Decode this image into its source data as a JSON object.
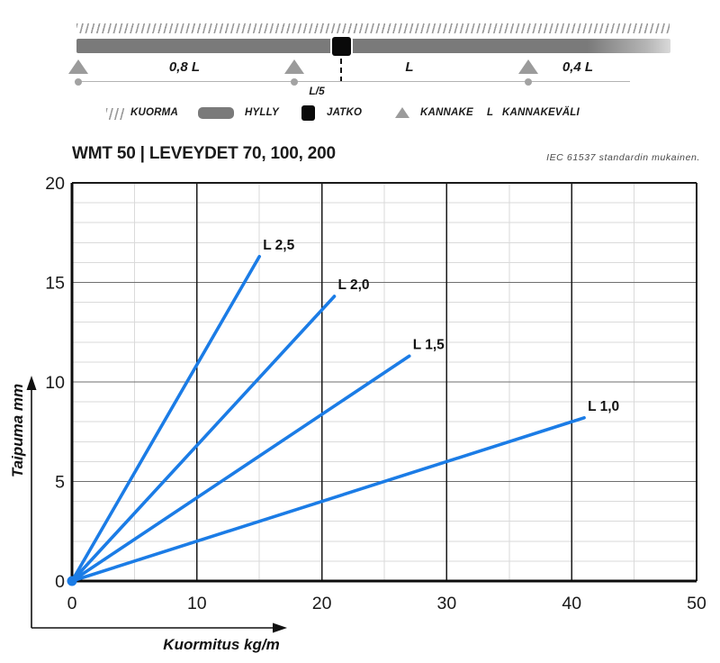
{
  "diagram": {
    "span_labels": [
      "0,8 L",
      "L",
      "0,4 L"
    ],
    "joint_offset_label": "L/5",
    "legend": [
      {
        "icon": "hatch-swatch",
        "label": "KUORMA"
      },
      {
        "icon": "shelf-bar-swatch",
        "label": "HYLLY"
      },
      {
        "icon": "joint-square-swatch",
        "label": "JATKO"
      },
      {
        "icon": "support-triangle-swatch",
        "label": "KANNAKE"
      },
      {
        "icon": "letter-L",
        "label": "KANNAKEVÄLI"
      }
    ],
    "legend_letter": "L"
  },
  "header": {
    "title": "WMT 50 | LEVEYDET 70, 100, 200",
    "note": "IEC 61537 standardin mukainen."
  },
  "colors": {
    "line_blue": "#1b7ce6",
    "shelf_gray": "#7a7a7a",
    "support_gray": "#9b9b9b",
    "joint_black": "#0a0a0a",
    "grid_minor": "#dadada",
    "grid_major_h": "#6f6f6f",
    "grid_major_v": "#1a1a1a"
  },
  "chart_data": {
    "type": "line",
    "title": "WMT 50 | LEVEYDET 70, 100, 200",
    "xlabel": "Kuormitus kg/m",
    "ylabel": "Taipuma mm",
    "xlim": [
      0,
      50
    ],
    "ylim": [
      0,
      20
    ],
    "x_major": 10,
    "x_minor": 5,
    "y_major": 5,
    "y_minor": 1,
    "x_ticks": [
      0,
      10,
      20,
      30,
      40,
      50
    ],
    "y_ticks": [
      0,
      5,
      10,
      15,
      20
    ],
    "grid": true,
    "legend_position": "inline-end-labels",
    "line_color": "#1b7ce6",
    "series": [
      {
        "name": "L 2,5",
        "x": [
          0,
          15
        ],
        "y": [
          0,
          16.3
        ]
      },
      {
        "name": "L 2,0",
        "x": [
          0,
          21
        ],
        "y": [
          0,
          14.3
        ]
      },
      {
        "name": "L 1,5",
        "x": [
          0,
          27
        ],
        "y": [
          0,
          11.3
        ]
      },
      {
        "name": "L 1,0",
        "x": [
          0,
          41
        ],
        "y": [
          0,
          8.2
        ]
      }
    ]
  }
}
